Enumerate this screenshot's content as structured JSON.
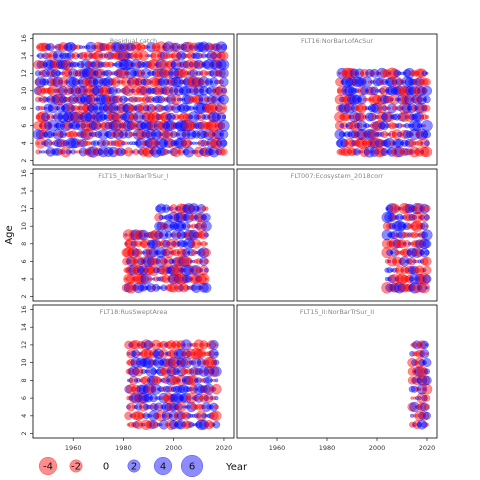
{
  "chart_data": {
    "type": "scatter",
    "title": "",
    "xlabel": "Year",
    "ylabel": "Age",
    "xlim": [
      1944,
      2024
    ],
    "ylim": [
      1.5,
      16.5
    ],
    "x_ticks": [
      1960,
      1980,
      2000,
      2020
    ],
    "y_ticks": [
      2,
      4,
      6,
      8,
      10,
      12,
      14,
      16
    ],
    "colors": {
      "positive": "#0000ff",
      "negative": "#ff0000",
      "frame": "#000000"
    },
    "panels": [
      {
        "title": "Residual catch",
        "years": [
          1946,
          2020
        ],
        "ages": [
          3,
          15
        ],
        "seed": 11
      },
      {
        "title": "FLT16:NorBarLofAcSur",
        "years": [
          1985,
          2020
        ],
        "ages": [
          3,
          12
        ],
        "seed": 23
      },
      {
        "title": "FLT15_I:NorBarTrSur_I",
        "years": [
          1981,
          2013
        ],
        "ages": [
          3,
          12
        ],
        "seed": 37,
        "missing_before": {
          "year": 1994,
          "min_age": 10
        }
      },
      {
        "title": "FLT007:Ecosystem_2018corr",
        "years": [
          2004,
          2020
        ],
        "ages": [
          3,
          12
        ],
        "seed": 41
      },
      {
        "title": "FLT18:RusSweptArea",
        "years": [
          1982,
          2017
        ],
        "ages": [
          3,
          12
        ],
        "seed": 53
      },
      {
        "title": "FLT15_II:NorBarTrSur_II",
        "years": [
          2014,
          2020
        ],
        "ages": [
          3,
          12
        ],
        "seed": 67
      }
    ],
    "legend": {
      "values": [
        -4,
        -2,
        0,
        2,
        4,
        6
      ],
      "labels": [
        "-4",
        "-2",
        "0",
        "2",
        "4",
        "6"
      ],
      "x_label": "Year"
    }
  }
}
